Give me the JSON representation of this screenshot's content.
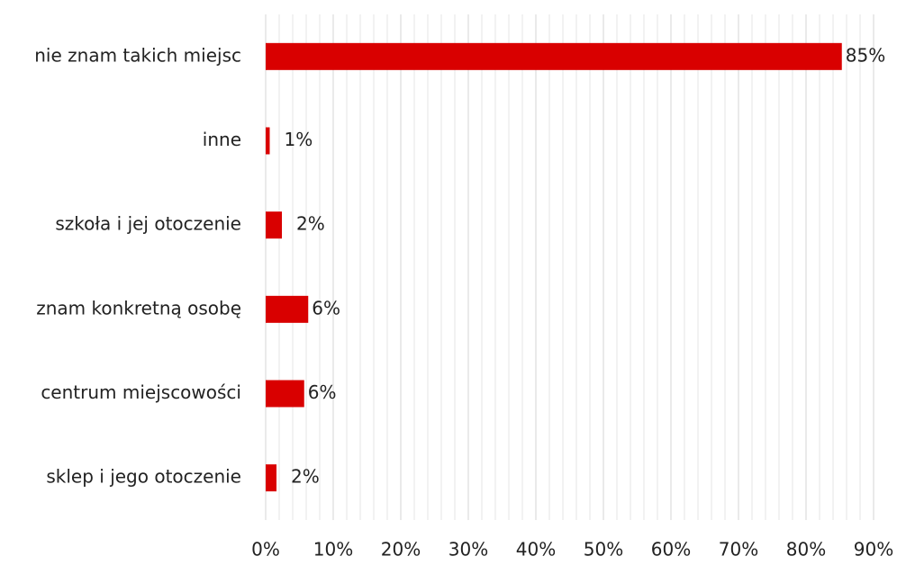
{
  "chart_data": {
    "type": "hbar",
    "categories": [
      "nie znam takich miejsc",
      "inne",
      "szkoła i jej otoczenie",
      "znam konkretną osobę",
      "centrum miejscowości",
      "sklep i jego otoczenie"
    ],
    "values": [
      85.3,
      0.6,
      2.4,
      6.3,
      5.7,
      1.6
    ],
    "value_labels": [
      "85%",
      "1%",
      "2%",
      "6%",
      "6%",
      "2%"
    ],
    "color": "#d90000",
    "xlim": [
      0,
      90
    ],
    "xticks": [
      {
        "value": 0,
        "label": "0%"
      },
      {
        "value": 10,
        "label": "10%"
      },
      {
        "value": 20,
        "label": "20%"
      },
      {
        "value": 30,
        "label": "30%"
      },
      {
        "value": 40,
        "label": "40%"
      },
      {
        "value": 50,
        "label": "50%"
      },
      {
        "value": 60,
        "label": "60%"
      },
      {
        "value": 70,
        "label": "70%"
      },
      {
        "value": 80,
        "label": "80%"
      },
      {
        "value": 90,
        "label": "90%"
      }
    ],
    "minor_xticks": [
      2,
      4,
      6,
      8,
      12,
      14,
      16,
      18,
      22,
      24,
      26,
      28,
      32,
      34,
      36,
      38,
      42,
      44,
      46,
      48,
      52,
      54,
      56,
      58,
      62,
      64,
      66,
      68,
      72,
      74,
      76,
      78,
      82,
      84,
      86,
      88
    ],
    "grid": true
  }
}
